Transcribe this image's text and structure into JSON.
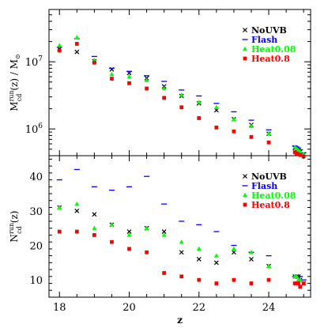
{
  "chart_data": [
    {
      "type": "scatter",
      "xlabel": "z",
      "ylabel": "M_cd^run(z) / M_⊙",
      "ylabel_parts": {
        "base": "M",
        "sup": "run",
        "sub": "cd",
        "rest": "(z) / M",
        "sun": "⊙"
      },
      "y_scale": "log",
      "xlim": [
        17.7,
        25.2
      ],
      "ylim": [
        400000,
        60000000
      ],
      "y_ticks": [
        1000000,
        10000000
      ],
      "y_tick_labels": [
        {
          "base": "10",
          "exp": "6"
        },
        {
          "base": "10",
          "exp": "7"
        }
      ],
      "legend_position": "top-right",
      "series": [
        {
          "name": "NoUVB",
          "marker": "x",
          "color": "#000000",
          "x": [
            18,
            18.5,
            19,
            19.5,
            20,
            20.5,
            21,
            21.5,
            22,
            22.5,
            23,
            23.5,
            24,
            24.75,
            24.8,
            24.85,
            24.9,
            25
          ],
          "y": [
            15500000,
            14000000,
            10200000,
            7700000,
            6800000,
            5700000,
            4300000,
            3100000,
            2400000,
            1900000,
            1400000,
            1150000,
            850000,
            520000,
            500000,
            480000,
            460000,
            420000
          ]
        },
        {
          "name": "Flash",
          "marker": "dash",
          "color": "#0000ff",
          "x": [
            18,
            18.5,
            19,
            19.5,
            20,
            20.5,
            21,
            21.5,
            22,
            22.5,
            23,
            23.5,
            24,
            24.75,
            24.8,
            24.85,
            24.9,
            25
          ],
          "y": [
            16500000,
            22000000,
            12000000,
            8000000,
            7200000,
            6200000,
            5100000,
            3800000,
            3100000,
            2400000,
            1800000,
            1350000,
            970000,
            560000,
            540000,
            520000,
            490000,
            440000
          ]
        },
        {
          "name": "Heat0.08",
          "marker": "triangle",
          "color": "#00ff00",
          "x": [
            18,
            18.5,
            19,
            19.5,
            20,
            20.5,
            21,
            21.5,
            22,
            22.5,
            23,
            23.5,
            24,
            24.75,
            24.8,
            24.85,
            24.9,
            25
          ],
          "y": [
            17500000,
            23000000,
            10500000,
            6500000,
            6000000,
            5300000,
            4000000,
            3200000,
            2500000,
            2100000,
            1400000,
            1100000,
            860000,
            540000,
            510000,
            480000,
            460000,
            420000
          ]
        },
        {
          "name": "Heat0.8",
          "marker": "square",
          "color": "#ff0000",
          "x": [
            18,
            18.5,
            19,
            19.5,
            20,
            20.5,
            21,
            21.5,
            22,
            22.5,
            23,
            23.5,
            24,
            24.75,
            24.8,
            24.85,
            24.9,
            25
          ],
          "y": [
            14700000,
            18500000,
            9700000,
            5600000,
            4800000,
            4000000,
            2900000,
            2100000,
            1450000,
            1050000,
            920000,
            760000,
            630000,
            450000,
            430000,
            420000,
            410000,
            390000
          ]
        }
      ]
    },
    {
      "type": "scatter",
      "xlabel": "z",
      "ylabel": "N_cd^run(z)",
      "ylabel_parts": {
        "base": "N",
        "sup": "run",
        "sub": "cd",
        "rest": "(z)"
      },
      "y_scale": "linear",
      "xlim": [
        17.7,
        25.2
      ],
      "ylim": [
        5,
        46
      ],
      "y_ticks": [
        10,
        20,
        30,
        40
      ],
      "y_tick_labels": [
        "10",
        "20",
        "30",
        "40"
      ],
      "x_ticks": [
        18,
        20,
        22,
        24
      ],
      "x_tick_labels": [
        "18",
        "20",
        "22",
        "24"
      ],
      "legend_position": "top-right",
      "series": [
        {
          "name": "NoUVB",
          "marker": "x",
          "color": "#000000",
          "x": [
            18,
            18.5,
            19,
            19.5,
            20,
            20.5,
            21,
            21.5,
            22,
            22.5,
            23,
            23.5,
            24,
            24.75,
            24.8,
            24.85,
            24.9,
            25
          ],
          "y": [
            31,
            30,
            29,
            26,
            24,
            25,
            24,
            18,
            16,
            15,
            18,
            16,
            14,
            11,
            11,
            11,
            10,
            9
          ]
        },
        {
          "name": "Flash",
          "marker": "dash",
          "color": "#0000ff",
          "x": [
            18,
            18.5,
            19,
            19.5,
            20,
            20.5,
            21,
            21.5,
            22,
            22.5,
            23,
            23.5,
            24,
            24.75,
            24.8,
            24.85,
            24.9,
            25
          ],
          "y": [
            39,
            42,
            37,
            36,
            37,
            40,
            32,
            27,
            26,
            24,
            20,
            18,
            17,
            11,
            11,
            11,
            11,
            10
          ]
        },
        {
          "name": "Heat0.08",
          "marker": "triangle",
          "color": "#00ff00",
          "x": [
            18,
            18.5,
            19,
            19.5,
            20,
            20.5,
            21,
            21.5,
            22,
            22.5,
            23,
            23.5,
            24,
            24.75,
            24.8,
            24.85,
            24.9,
            25
          ],
          "y": [
            31,
            32,
            25,
            26,
            23,
            25,
            23,
            21,
            19,
            17,
            19,
            18,
            14,
            11,
            11,
            10,
            10,
            9
          ]
        },
        {
          "name": "Heat0.8",
          "marker": "square",
          "color": "#ff0000",
          "x": [
            18,
            18.5,
            19,
            19.5,
            20,
            20.5,
            21,
            21.5,
            22,
            22.5,
            23,
            23.5,
            24,
            24.75,
            24.8,
            24.85,
            24.9,
            25
          ],
          "y": [
            24,
            24,
            23,
            21,
            19,
            18,
            12,
            11,
            10,
            9,
            10,
            9,
            10,
            9,
            9,
            9,
            8,
            9
          ]
        }
      ]
    }
  ]
}
